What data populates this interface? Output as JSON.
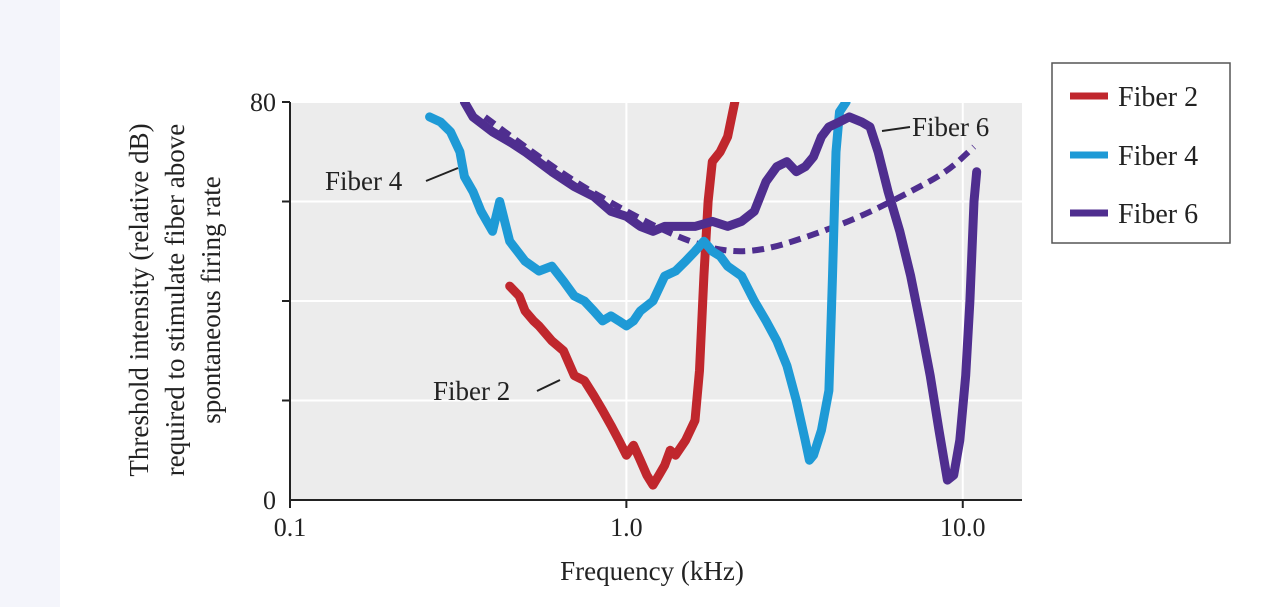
{
  "chart_data": {
    "type": "line",
    "title": "",
    "xlabel": "Frequency (kHz)",
    "ylabel_lines": [
      "Threshold intensity (relative dB)",
      "required to stimulate fiber above",
      "spontaneous firing rate"
    ],
    "xscale": "log",
    "xlim": [
      0.1,
      15
    ],
    "ylim": [
      0,
      80
    ],
    "x_ticks": [
      {
        "value": 0.1,
        "label": "0.1"
      },
      {
        "value": 1.0,
        "label": "1.0"
      },
      {
        "value": 10.0,
        "label": "10.0"
      }
    ],
    "y_ticks": [
      {
        "value": 0,
        "label": "0"
      },
      {
        "value": 80,
        "label": "80"
      }
    ],
    "y_gridlines": [
      20,
      40,
      60,
      80
    ],
    "x_gridlines": [
      1.0,
      10.0
    ],
    "series": [
      {
        "name": "Fiber 2",
        "color": "#c0272d",
        "points": [
          [
            0.45,
            43
          ],
          [
            0.48,
            41
          ],
          [
            0.5,
            38
          ],
          [
            0.53,
            36
          ],
          [
            0.55,
            35
          ],
          [
            0.6,
            32
          ],
          [
            0.65,
            30
          ],
          [
            0.7,
            25
          ],
          [
            0.75,
            24
          ],
          [
            0.8,
            21
          ],
          [
            0.85,
            18
          ],
          [
            0.9,
            15
          ],
          [
            0.95,
            12
          ],
          [
            1.0,
            9
          ],
          [
            1.05,
            11
          ],
          [
            1.1,
            8
          ],
          [
            1.15,
            5
          ],
          [
            1.2,
            3
          ],
          [
            1.25,
            5
          ],
          [
            1.3,
            7
          ],
          [
            1.35,
            10
          ],
          [
            1.4,
            9
          ],
          [
            1.5,
            12
          ],
          [
            1.6,
            16
          ],
          [
            1.65,
            26
          ],
          [
            1.7,
            45
          ],
          [
            1.75,
            60
          ],
          [
            1.8,
            68
          ],
          [
            1.9,
            70
          ],
          [
            2.0,
            73
          ],
          [
            2.1,
            80
          ]
        ]
      },
      {
        "name": "Fiber 4",
        "color": "#1e9ad6",
        "points": [
          [
            0.26,
            77
          ],
          [
            0.28,
            76
          ],
          [
            0.3,
            74
          ],
          [
            0.32,
            70
          ],
          [
            0.33,
            65
          ],
          [
            0.35,
            62
          ],
          [
            0.37,
            58
          ],
          [
            0.4,
            54
          ],
          [
            0.42,
            60
          ],
          [
            0.45,
            52
          ],
          [
            0.5,
            48
          ],
          [
            0.55,
            46
          ],
          [
            0.6,
            47
          ],
          [
            0.65,
            44
          ],
          [
            0.7,
            41
          ],
          [
            0.75,
            40
          ],
          [
            0.8,
            38
          ],
          [
            0.85,
            36
          ],
          [
            0.9,
            37
          ],
          [
            0.95,
            36
          ],
          [
            1.0,
            35
          ],
          [
            1.05,
            36
          ],
          [
            1.1,
            38
          ],
          [
            1.2,
            40
          ],
          [
            1.3,
            45
          ],
          [
            1.4,
            46
          ],
          [
            1.5,
            48
          ],
          [
            1.6,
            50
          ],
          [
            1.7,
            52
          ],
          [
            1.8,
            50
          ],
          [
            1.9,
            49
          ],
          [
            2.0,
            47
          ],
          [
            2.2,
            45
          ],
          [
            2.4,
            40
          ],
          [
            2.6,
            36
          ],
          [
            2.8,
            32
          ],
          [
            3.0,
            27
          ],
          [
            3.2,
            20
          ],
          [
            3.4,
            12
          ],
          [
            3.5,
            8
          ],
          [
            3.6,
            9
          ],
          [
            3.8,
            14
          ],
          [
            4.0,
            22
          ],
          [
            4.1,
            45
          ],
          [
            4.2,
            70
          ],
          [
            4.3,
            78
          ],
          [
            4.5,
            80
          ]
        ]
      },
      {
        "name": "Fiber 6",
        "color": "#4f2e8f",
        "points": [
          [
            0.33,
            80
          ],
          [
            0.35,
            77
          ],
          [
            0.4,
            74
          ],
          [
            0.45,
            72
          ],
          [
            0.5,
            70
          ],
          [
            0.6,
            66
          ],
          [
            0.7,
            63
          ],
          [
            0.8,
            61
          ],
          [
            0.9,
            58
          ],
          [
            1.0,
            57
          ],
          [
            1.1,
            55
          ],
          [
            1.2,
            54
          ],
          [
            1.3,
            55
          ],
          [
            1.4,
            55
          ],
          [
            1.5,
            55
          ],
          [
            1.6,
            55
          ],
          [
            1.8,
            56
          ],
          [
            2.0,
            55
          ],
          [
            2.2,
            56
          ],
          [
            2.4,
            58
          ],
          [
            2.6,
            64
          ],
          [
            2.8,
            67
          ],
          [
            3.0,
            68
          ],
          [
            3.2,
            66
          ],
          [
            3.4,
            67
          ],
          [
            3.6,
            69
          ],
          [
            3.8,
            73
          ],
          [
            4.0,
            75
          ],
          [
            4.3,
            76
          ],
          [
            4.6,
            77
          ],
          [
            5.0,
            76
          ],
          [
            5.3,
            75
          ],
          [
            5.6,
            70
          ],
          [
            6.0,
            62
          ],
          [
            6.5,
            54
          ],
          [
            7.0,
            45
          ],
          [
            7.5,
            35
          ],
          [
            8.0,
            25
          ],
          [
            8.5,
            14
          ],
          [
            9.0,
            4
          ],
          [
            9.4,
            5
          ],
          [
            9.8,
            12
          ],
          [
            10.2,
            25
          ],
          [
            10.5,
            40
          ],
          [
            10.8,
            60
          ],
          [
            11.0,
            66
          ]
        ]
      }
    ],
    "envelope": {
      "name": "Fiber 6 envelope",
      "color": "#4f2e8f",
      "style": "dashed",
      "points": [
        [
          0.38,
          77
        ],
        [
          0.5,
          71
        ],
        [
          0.7,
          64
        ],
        [
          1.0,
          58
        ],
        [
          1.4,
          53
        ],
        [
          1.9,
          50
        ],
        [
          2.5,
          50
        ],
        [
          3.5,
          53
        ],
        [
          5.0,
          57
        ],
        [
          7.0,
          62
        ],
        [
          9.0,
          66
        ],
        [
          10.8,
          71
        ]
      ]
    },
    "annotations": [
      {
        "text": "Fiber 4",
        "x": 0.3,
        "y": 71
      },
      {
        "text": "Fiber 2",
        "x": 0.6,
        "y": 24
      },
      {
        "text": "Fiber 6",
        "x": 5.2,
        "y": 75
      }
    ],
    "legend": {
      "position": "top-right",
      "entries": [
        {
          "label": "Fiber 2",
          "color": "#c0272d"
        },
        {
          "label": "Fiber 4",
          "color": "#1e9ad6"
        },
        {
          "label": "Fiber 6",
          "color": "#4f2e8f"
        }
      ]
    }
  }
}
